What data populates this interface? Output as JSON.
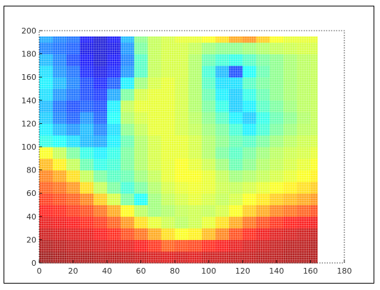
{
  "chart_data": {
    "type": "heatmap",
    "title": "",
    "xlabel": "",
    "ylabel": "",
    "xlim": [
      0,
      180
    ],
    "ylim": [
      0,
      200
    ],
    "x_ticks": [
      0,
      20,
      40,
      60,
      80,
      100,
      120,
      140,
      160,
      180
    ],
    "x_tick_labels": [
      "0",
      "20",
      "40",
      "60",
      "80",
      "100",
      "120",
      "140",
      "160",
      "180"
    ],
    "y_ticks": [
      0,
      20,
      40,
      60,
      80,
      100,
      120,
      140,
      160,
      180,
      200
    ],
    "y_tick_labels": [
      "0",
      "20",
      "40",
      "60",
      "80",
      "100",
      "120",
      "140",
      "160",
      "180",
      "200"
    ],
    "data_extent": {
      "x": [
        0,
        164
      ],
      "y": [
        0,
        195
      ]
    },
    "colormap": "jet",
    "value_range": [
      0,
      1
    ],
    "grid": true,
    "grid_cols": [
      0,
      8,
      16,
      24,
      32,
      40,
      48,
      56,
      64,
      72,
      80,
      88,
      96,
      104,
      112,
      120,
      128,
      136,
      144,
      152,
      160
    ],
    "grid_rows": [
      0,
      10,
      20,
      30,
      40,
      50,
      60,
      70,
      80,
      90,
      100,
      110,
      120,
      130,
      140,
      150,
      160,
      170,
      180,
      190
    ],
    "values": [
      [
        0.98,
        0.97,
        0.96,
        0.96,
        0.95,
        0.95,
        0.94,
        0.93,
        0.92,
        0.91,
        0.92,
        0.91,
        0.93,
        0.93,
        0.94,
        0.94,
        0.95,
        0.95,
        0.96,
        0.96,
        0.96
      ],
      [
        0.96,
        0.95,
        0.94,
        0.93,
        0.92,
        0.91,
        0.9,
        0.88,
        0.85,
        0.8,
        0.82,
        0.83,
        0.86,
        0.88,
        0.9,
        0.92,
        0.93,
        0.94,
        0.95,
        0.95,
        0.96
      ],
      [
        0.93,
        0.92,
        0.91,
        0.9,
        0.88,
        0.86,
        0.82,
        0.78,
        0.72,
        0.66,
        0.62,
        0.64,
        0.7,
        0.76,
        0.82,
        0.86,
        0.89,
        0.91,
        0.92,
        0.93,
        0.94
      ],
      [
        0.9,
        0.89,
        0.88,
        0.86,
        0.84,
        0.8,
        0.74,
        0.66,
        0.6,
        0.57,
        0.55,
        0.57,
        0.6,
        0.66,
        0.72,
        0.78,
        0.82,
        0.85,
        0.87,
        0.88,
        0.89
      ],
      [
        0.87,
        0.86,
        0.84,
        0.82,
        0.78,
        0.72,
        0.63,
        0.55,
        0.52,
        0.54,
        0.56,
        0.57,
        0.56,
        0.58,
        0.62,
        0.68,
        0.72,
        0.76,
        0.78,
        0.8,
        0.82
      ],
      [
        0.84,
        0.82,
        0.8,
        0.76,
        0.68,
        0.58,
        0.48,
        0.38,
        0.52,
        0.56,
        0.58,
        0.6,
        0.58,
        0.56,
        0.58,
        0.62,
        0.65,
        0.68,
        0.7,
        0.72,
        0.74
      ],
      [
        0.8,
        0.78,
        0.74,
        0.66,
        0.56,
        0.48,
        0.42,
        0.48,
        0.54,
        0.58,
        0.6,
        0.61,
        0.6,
        0.57,
        0.56,
        0.58,
        0.6,
        0.62,
        0.64,
        0.66,
        0.68
      ],
      [
        0.76,
        0.72,
        0.66,
        0.56,
        0.48,
        0.44,
        0.46,
        0.52,
        0.56,
        0.6,
        0.62,
        0.62,
        0.6,
        0.56,
        0.52,
        0.54,
        0.56,
        0.58,
        0.6,
        0.62,
        0.64
      ],
      [
        0.7,
        0.64,
        0.56,
        0.46,
        0.4,
        0.42,
        0.48,
        0.54,
        0.58,
        0.6,
        0.62,
        0.6,
        0.57,
        0.52,
        0.46,
        0.5,
        0.54,
        0.56,
        0.58,
        0.6,
        0.62
      ],
      [
        0.62,
        0.56,
        0.48,
        0.4,
        0.36,
        0.4,
        0.48,
        0.54,
        0.58,
        0.6,
        0.6,
        0.58,
        0.54,
        0.48,
        0.44,
        0.48,
        0.52,
        0.55,
        0.57,
        0.58,
        0.6
      ],
      [
        0.4,
        0.38,
        0.34,
        0.3,
        0.28,
        0.36,
        0.46,
        0.54,
        0.58,
        0.6,
        0.6,
        0.58,
        0.54,
        0.5,
        0.46,
        0.44,
        0.48,
        0.52,
        0.55,
        0.57,
        0.58
      ],
      [
        0.36,
        0.3,
        0.26,
        0.3,
        0.24,
        0.34,
        0.5,
        0.56,
        0.6,
        0.6,
        0.58,
        0.56,
        0.52,
        0.48,
        0.42,
        0.36,
        0.42,
        0.48,
        0.52,
        0.55,
        0.56
      ],
      [
        0.32,
        0.24,
        0.2,
        0.26,
        0.2,
        0.38,
        0.54,
        0.58,
        0.6,
        0.6,
        0.58,
        0.55,
        0.5,
        0.44,
        0.36,
        0.32,
        0.4,
        0.46,
        0.5,
        0.54,
        0.56
      ],
      [
        0.3,
        0.22,
        0.18,
        0.2,
        0.18,
        0.36,
        0.56,
        0.6,
        0.6,
        0.6,
        0.58,
        0.54,
        0.48,
        0.4,
        0.32,
        0.36,
        0.44,
        0.48,
        0.52,
        0.55,
        0.56
      ],
      [
        0.34,
        0.26,
        0.22,
        0.18,
        0.16,
        0.28,
        0.48,
        0.58,
        0.6,
        0.6,
        0.58,
        0.54,
        0.46,
        0.36,
        0.32,
        0.4,
        0.46,
        0.5,
        0.53,
        0.55,
        0.56
      ],
      [
        0.36,
        0.3,
        0.24,
        0.18,
        0.14,
        0.2,
        0.36,
        0.52,
        0.58,
        0.6,
        0.58,
        0.54,
        0.44,
        0.34,
        0.34,
        0.44,
        0.48,
        0.5,
        0.53,
        0.55,
        0.56
      ],
      [
        0.34,
        0.26,
        0.22,
        0.14,
        0.1,
        0.14,
        0.26,
        0.44,
        0.56,
        0.58,
        0.58,
        0.54,
        0.42,
        0.3,
        0.18,
        0.38,
        0.46,
        0.5,
        0.53,
        0.55,
        0.56
      ],
      [
        0.3,
        0.24,
        0.18,
        0.12,
        0.08,
        0.12,
        0.24,
        0.44,
        0.56,
        0.58,
        0.58,
        0.54,
        0.46,
        0.42,
        0.4,
        0.44,
        0.48,
        0.5,
        0.53,
        0.55,
        0.56
      ],
      [
        0.24,
        0.22,
        0.2,
        0.1,
        0.08,
        0.1,
        0.26,
        0.48,
        0.56,
        0.58,
        0.58,
        0.56,
        0.52,
        0.5,
        0.5,
        0.52,
        0.54,
        0.56,
        0.57,
        0.58,
        0.58
      ],
      [
        0.28,
        0.24,
        0.22,
        0.12,
        0.08,
        0.12,
        0.3,
        0.5,
        0.56,
        0.58,
        0.6,
        0.6,
        0.62,
        0.66,
        0.72,
        0.74,
        0.68,
        0.62,
        0.6,
        0.6,
        0.6
      ]
    ]
  }
}
